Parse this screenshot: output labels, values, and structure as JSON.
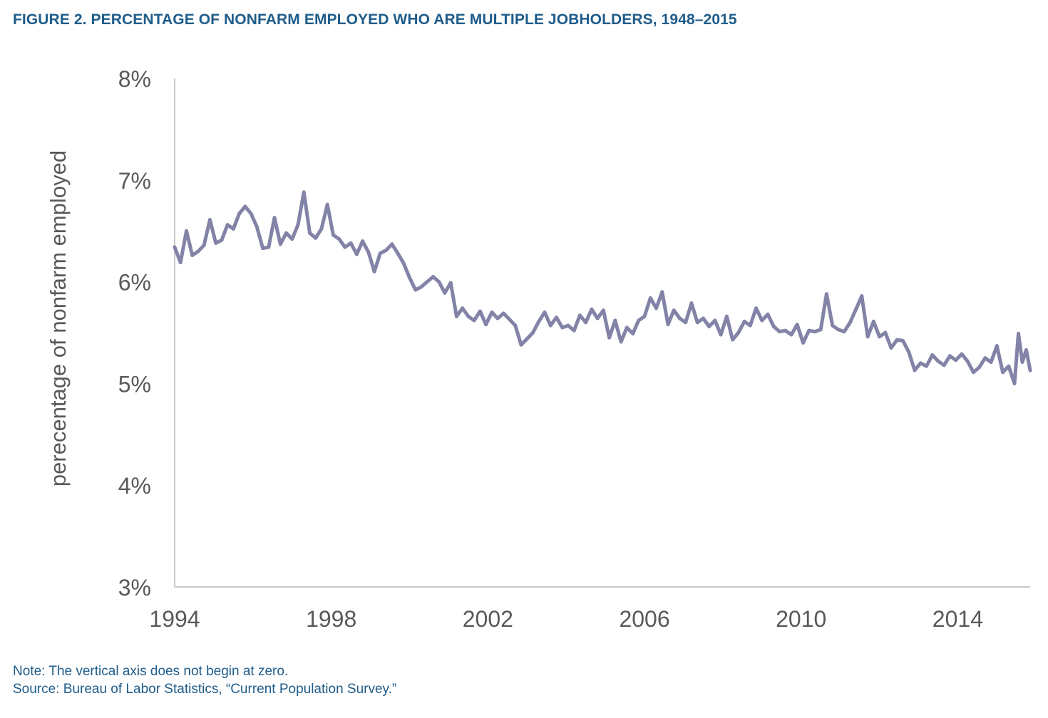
{
  "figure": {
    "title": "FIGURE 2. PERCENTAGE OF NONFARM EMPLOYED WHO ARE MULTIPLE JOBHOLDERS, 1948–2015",
    "note": "Note: The vertical axis does not begin at zero.",
    "source": "Source: Bureau of Labor Statistics, “Current Population Survey.”"
  },
  "colors": {
    "line": "#8383a8",
    "axis": "#c8c8c8",
    "title": "#1f5c8a",
    "text": "#58595b"
  },
  "chart_data": {
    "type": "line",
    "title": "FIGURE 2. PERCENTAGE OF NONFARM EMPLOYED WHO ARE MULTIPLE JOBHOLDERS, 1948–2015",
    "xlabel": "",
    "ylabel": "perecentage of nonfarm employed",
    "xlim": [
      1994,
      2015.85
    ],
    "ylim": [
      3,
      8
    ],
    "x_ticks": [
      1994,
      1998,
      2002,
      2006,
      2010,
      2014
    ],
    "x_tick_labels": [
      "1994",
      "1998",
      "2002",
      "2006",
      "2010",
      "2014"
    ],
    "y_ticks": [
      3,
      4,
      5,
      6,
      7,
      8
    ],
    "y_tick_labels": [
      "3%",
      "4%",
      "5%",
      "6%",
      "7%",
      "8%"
    ],
    "grid": false,
    "legend": "none",
    "series": [
      {
        "points": [
          [
            1994.0,
            6.34
          ],
          [
            1994.15,
            6.19
          ],
          [
            1994.3,
            6.5
          ],
          [
            1994.45,
            6.26
          ],
          [
            1994.6,
            6.3
          ],
          [
            1994.75,
            6.36
          ],
          [
            1994.9,
            6.61
          ],
          [
            1995.05,
            6.38
          ],
          [
            1995.2,
            6.41
          ],
          [
            1995.35,
            6.56
          ],
          [
            1995.5,
            6.52
          ],
          [
            1995.65,
            6.67
          ],
          [
            1995.8,
            6.74
          ],
          [
            1995.95,
            6.67
          ],
          [
            1996.1,
            6.54
          ],
          [
            1996.25,
            6.33
          ],
          [
            1996.4,
            6.34
          ],
          [
            1996.55,
            6.63
          ],
          [
            1996.7,
            6.37
          ],
          [
            1996.85,
            6.48
          ],
          [
            1997.0,
            6.42
          ],
          [
            1997.15,
            6.56
          ],
          [
            1997.3,
            6.88
          ],
          [
            1997.45,
            6.48
          ],
          [
            1997.6,
            6.43
          ],
          [
            1997.75,
            6.52
          ],
          [
            1997.9,
            6.76
          ],
          [
            1998.05,
            6.46
          ],
          [
            1998.2,
            6.42
          ],
          [
            1998.35,
            6.34
          ],
          [
            1998.5,
            6.38
          ],
          [
            1998.65,
            6.27
          ],
          [
            1998.8,
            6.4
          ],
          [
            1998.95,
            6.29
          ],
          [
            1999.1,
            6.1
          ],
          [
            1999.25,
            6.28
          ],
          [
            1999.4,
            6.31
          ],
          [
            1999.55,
            6.37
          ],
          [
            1999.7,
            6.28
          ],
          [
            1999.85,
            6.18
          ],
          [
            2000.0,
            6.04
          ],
          [
            2000.15,
            5.92
          ],
          [
            2000.3,
            5.95
          ],
          [
            2000.45,
            6.0
          ],
          [
            2000.6,
            6.05
          ],
          [
            2000.75,
            6.0
          ],
          [
            2000.9,
            5.89
          ],
          [
            2001.05,
            5.99
          ],
          [
            2001.2,
            5.66
          ],
          [
            2001.35,
            5.74
          ],
          [
            2001.5,
            5.66
          ],
          [
            2001.65,
            5.62
          ],
          [
            2001.8,
            5.71
          ],
          [
            2001.95,
            5.58
          ],
          [
            2002.1,
            5.7
          ],
          [
            2002.25,
            5.64
          ],
          [
            2002.4,
            5.69
          ],
          [
            2002.55,
            5.63
          ],
          [
            2002.7,
            5.57
          ],
          [
            2002.85,
            5.38
          ],
          [
            2003.0,
            5.44
          ],
          [
            2003.15,
            5.5
          ],
          [
            2003.3,
            5.61
          ],
          [
            2003.45,
            5.7
          ],
          [
            2003.6,
            5.57
          ],
          [
            2003.75,
            5.65
          ],
          [
            2003.9,
            5.55
          ],
          [
            2004.05,
            5.57
          ],
          [
            2004.2,
            5.52
          ],
          [
            2004.35,
            5.67
          ],
          [
            2004.5,
            5.6
          ],
          [
            2004.65,
            5.73
          ],
          [
            2004.8,
            5.64
          ],
          [
            2004.95,
            5.72
          ],
          [
            2005.1,
            5.45
          ],
          [
            2005.25,
            5.62
          ],
          [
            2005.4,
            5.41
          ],
          [
            2005.55,
            5.55
          ],
          [
            2005.7,
            5.49
          ],
          [
            2005.85,
            5.62
          ],
          [
            2006.0,
            5.66
          ],
          [
            2006.15,
            5.84
          ],
          [
            2006.3,
            5.74
          ],
          [
            2006.45,
            5.9
          ],
          [
            2006.6,
            5.58
          ],
          [
            2006.75,
            5.72
          ],
          [
            2006.9,
            5.64
          ],
          [
            2007.05,
            5.6
          ],
          [
            2007.2,
            5.79
          ],
          [
            2007.35,
            5.6
          ],
          [
            2007.5,
            5.64
          ],
          [
            2007.65,
            5.56
          ],
          [
            2007.8,
            5.62
          ],
          [
            2007.95,
            5.48
          ],
          [
            2008.1,
            5.66
          ],
          [
            2008.25,
            5.43
          ],
          [
            2008.4,
            5.5
          ],
          [
            2008.55,
            5.61
          ],
          [
            2008.7,
            5.57
          ],
          [
            2008.85,
            5.74
          ],
          [
            2009.0,
            5.62
          ],
          [
            2009.15,
            5.68
          ],
          [
            2009.3,
            5.56
          ],
          [
            2009.45,
            5.51
          ],
          [
            2009.6,
            5.52
          ],
          [
            2009.75,
            5.48
          ],
          [
            2009.9,
            5.58
          ],
          [
            2010.05,
            5.4
          ],
          [
            2010.2,
            5.52
          ],
          [
            2010.35,
            5.51
          ],
          [
            2010.5,
            5.53
          ],
          [
            2010.65,
            5.88
          ],
          [
            2010.8,
            5.57
          ],
          [
            2010.95,
            5.53
          ],
          [
            2011.1,
            5.51
          ],
          [
            2011.25,
            5.6
          ],
          [
            2011.4,
            5.73
          ],
          [
            2011.55,
            5.86
          ],
          [
            2011.7,
            5.46
          ],
          [
            2011.85,
            5.61
          ],
          [
            2012.0,
            5.46
          ],
          [
            2012.15,
            5.5
          ],
          [
            2012.3,
            5.35
          ],
          [
            2012.45,
            5.43
          ],
          [
            2012.6,
            5.42
          ],
          [
            2012.75,
            5.31
          ],
          [
            2012.9,
            5.13
          ],
          [
            2013.05,
            5.2
          ],
          [
            2013.2,
            5.17
          ],
          [
            2013.35,
            5.28
          ],
          [
            2013.5,
            5.22
          ],
          [
            2013.65,
            5.18
          ],
          [
            2013.8,
            5.27
          ],
          [
            2013.95,
            5.23
          ],
          [
            2014.1,
            5.29
          ],
          [
            2014.25,
            5.22
          ],
          [
            2014.4,
            5.11
          ],
          [
            2014.55,
            5.16
          ],
          [
            2014.7,
            5.25
          ],
          [
            2014.85,
            5.21
          ],
          [
            2015.0,
            5.37
          ],
          [
            2015.15,
            5.11
          ],
          [
            2015.3,
            5.17
          ],
          [
            2015.45,
            5.0
          ],
          [
            2015.55,
            5.49
          ],
          [
            2015.65,
            5.21
          ],
          [
            2015.75,
            5.33
          ],
          [
            2015.85,
            5.13
          ]
        ]
      }
    ]
  }
}
